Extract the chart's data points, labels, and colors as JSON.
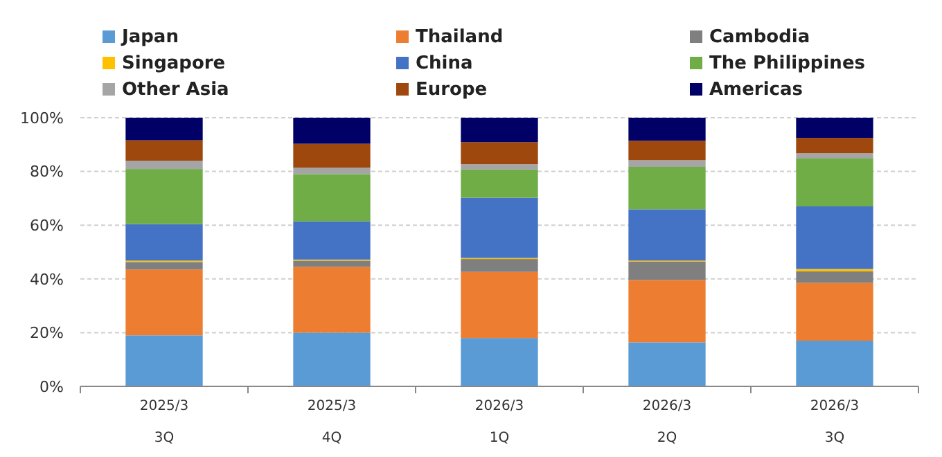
{
  "chart_data": {
    "type": "bar",
    "stacked": true,
    "categories": [
      "2025/3\n3Q",
      "2025/3\n4Q",
      "2026/3\n1Q",
      "2026/3\n2Q",
      "2026/3\n3Q"
    ],
    "series": [
      {
        "name": "Japan",
        "color": "#5b9bd5",
        "values": [
          19,
          20,
          18,
          16.4,
          17
        ]
      },
      {
        "name": "Thailand",
        "color": "#ed7d31",
        "values": [
          24.5,
          24.5,
          24.6,
          23.2,
          21.5
        ]
      },
      {
        "name": "Cambodia",
        "color": "#7f7f7f",
        "values": [
          2.8,
          2.3,
          4.8,
          6.8,
          4.3
        ]
      },
      {
        "name": "Singapore",
        "color": "#ffc000",
        "values": [
          0.5,
          0.4,
          0.4,
          0.4,
          0.9
        ]
      },
      {
        "name": "China",
        "color": "#4472c4",
        "values": [
          13.6,
          14.2,
          22.4,
          19.1,
          23.3
        ]
      },
      {
        "name": "The Philippines",
        "color": "#70ad47",
        "values": [
          20.5,
          17.6,
          10.5,
          15.8,
          17.8
        ]
      },
      {
        "name": "Other Asia",
        "color": "#a5a5a5",
        "values": [
          3.1,
          2.4,
          2.0,
          2.5,
          2.0
        ]
      },
      {
        "name": "Europe",
        "color": "#9e480e",
        "values": [
          7.6,
          8.9,
          8.2,
          7.2,
          5.7
        ]
      },
      {
        "name": "Americas",
        "color": "#000066",
        "values": [
          8.4,
          9.7,
          9.1,
          8.6,
          7.5
        ]
      }
    ],
    "ylim": [
      0,
      100
    ],
    "yticks": [
      {
        "value": 0,
        "label": "0%"
      },
      {
        "value": 20,
        "label": "20%"
      },
      {
        "value": 40,
        "label": "40%"
      },
      {
        "value": 60,
        "label": "60%"
      },
      {
        "value": 80,
        "label": "80%"
      },
      {
        "value": 100,
        "label": "100%"
      }
    ],
    "grid": "y",
    "legend": "top"
  }
}
